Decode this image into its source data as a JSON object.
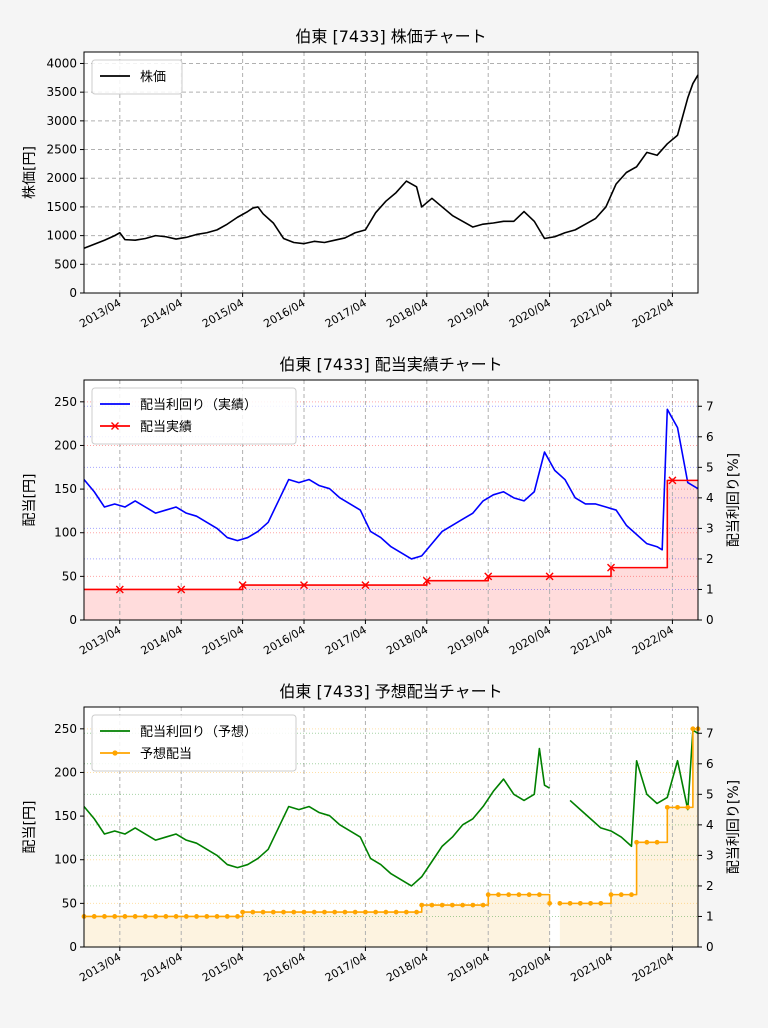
{
  "figure": {
    "background": "#f5f5f5"
  },
  "chart_data": [
    {
      "type": "line",
      "title": "伯東 [7433]  株価チャート",
      "ylabel": "株価[円]",
      "xlabel": "",
      "ylim": [
        0,
        4200
      ],
      "yticks": [
        0,
        500,
        1000,
        1500,
        2000,
        2500,
        3000,
        3500,
        4000
      ],
      "xrange": [
        "2012-09",
        "2022-09"
      ],
      "xticks": [
        "2013/04",
        "2014/04",
        "2015/04",
        "2016/04",
        "2017/04",
        "2018/04",
        "2019/04",
        "2020/04",
        "2021/04",
        "2022/04"
      ],
      "grid": true,
      "legend_position": "top-left",
      "series": [
        {
          "name": "株価",
          "color": "#000000",
          "x": [
            "2012-09",
            "2012-11",
            "2013-01",
            "2013-03",
            "2013-04",
            "2013-05",
            "2013-07",
            "2013-09",
            "2013-11",
            "2014-01",
            "2014-03",
            "2014-05",
            "2014-07",
            "2014-09",
            "2014-11",
            "2015-01",
            "2015-03",
            "2015-05",
            "2015-06",
            "2015-07",
            "2015-08",
            "2015-10",
            "2015-12",
            "2016-02",
            "2016-04",
            "2016-06",
            "2016-08",
            "2016-10",
            "2016-12",
            "2017-02",
            "2017-04",
            "2017-06",
            "2017-08",
            "2017-10",
            "2017-12",
            "2018-02",
            "2018-03",
            "2018-05",
            "2018-07",
            "2018-09",
            "2018-11",
            "2019-01",
            "2019-03",
            "2019-05",
            "2019-07",
            "2019-09",
            "2019-11",
            "2020-01",
            "2020-03",
            "2020-05",
            "2020-07",
            "2020-09",
            "2020-11",
            "2021-01",
            "2021-03",
            "2021-05",
            "2021-07",
            "2021-09",
            "2021-11",
            "2022-01",
            "2022-03",
            "2022-05",
            "2022-07",
            "2022-08",
            "2022-09"
          ],
          "values": [
            780,
            850,
            920,
            1000,
            1050,
            930,
            920,
            950,
            1000,
            980,
            940,
            970,
            1020,
            1050,
            1100,
            1200,
            1320,
            1420,
            1480,
            1500,
            1380,
            1220,
            950,
            880,
            860,
            900,
            880,
            920,
            960,
            1050,
            1100,
            1400,
            1600,
            1750,
            1950,
            1850,
            1500,
            1650,
            1500,
            1350,
            1250,
            1150,
            1200,
            1220,
            1250,
            1250,
            1420,
            1250,
            950,
            980,
            1050,
            1100,
            1200,
            1300,
            1500,
            1900,
            2100,
            2200,
            2450,
            2400,
            2600,
            2750,
            3400,
            3650,
            3800
          ]
        }
      ]
    },
    {
      "type": "line",
      "title": "伯東 [7433]  配当実績チャート",
      "ylabel": "配当[円]",
      "y2label": "配当利回り[%]",
      "xlabel": "",
      "ylim": [
        0,
        275
      ],
      "y2lim": [
        0,
        7.86
      ],
      "yticks": [
        0,
        50,
        100,
        150,
        200,
        250
      ],
      "y2ticks": [
        0,
        1,
        2,
        3,
        4,
        5,
        6,
        7
      ],
      "xrange": [
        "2012-09",
        "2022-09"
      ],
      "xticks": [
        "2013/04",
        "2014/04",
        "2015/04",
        "2016/04",
        "2017/04",
        "2018/04",
        "2019/04",
        "2020/04",
        "2021/04",
        "2022/04"
      ],
      "grid": true,
      "legend_position": "top-left",
      "series": [
        {
          "name": "配当利回り（実績）",
          "axis": "right",
          "color": "#0000ff",
          "x": [
            "2012-09",
            "2012-11",
            "2013-01",
            "2013-03",
            "2013-05",
            "2013-07",
            "2013-09",
            "2013-11",
            "2014-01",
            "2014-03",
            "2014-05",
            "2014-07",
            "2014-09",
            "2014-11",
            "2015-01",
            "2015-03",
            "2015-05",
            "2015-07",
            "2015-09",
            "2015-11",
            "2016-01",
            "2016-03",
            "2016-05",
            "2016-07",
            "2016-09",
            "2016-11",
            "2017-01",
            "2017-03",
            "2017-05",
            "2017-07",
            "2017-09",
            "2017-11",
            "2018-01",
            "2018-03",
            "2018-05",
            "2018-07",
            "2018-09",
            "2018-11",
            "2019-01",
            "2019-03",
            "2019-05",
            "2019-07",
            "2019-09",
            "2019-11",
            "2020-01",
            "2020-03",
            "2020-05",
            "2020-07",
            "2020-09",
            "2020-11",
            "2021-01",
            "2021-03",
            "2021-05",
            "2021-07",
            "2021-09",
            "2021-11",
            "2022-01",
            "2022-02",
            "2022-03",
            "2022-05",
            "2022-07",
            "2022-09"
          ],
          "values": [
            4.6,
            4.2,
            3.7,
            3.8,
            3.7,
            3.9,
            3.7,
            3.5,
            3.6,
            3.7,
            3.5,
            3.4,
            3.2,
            3.0,
            2.7,
            2.6,
            2.7,
            2.9,
            3.2,
            3.9,
            4.6,
            4.5,
            4.6,
            4.4,
            4.3,
            4.0,
            3.8,
            3.6,
            2.9,
            2.7,
            2.4,
            2.2,
            2.0,
            2.1,
            2.5,
            2.9,
            3.1,
            3.3,
            3.5,
            3.9,
            4.1,
            4.2,
            4.0,
            3.9,
            4.2,
            5.5,
            4.9,
            4.6,
            4.0,
            3.8,
            3.8,
            3.7,
            3.6,
            3.1,
            2.8,
            2.5,
            2.4,
            2.3,
            6.9,
            6.3,
            4.5,
            4.3
          ]
        },
        {
          "name": "配当実績",
          "axis": "left",
          "color": "#ff0000",
          "marker": "x",
          "step": true,
          "fill": "#ffdcdc",
          "x": [
            "2012-09",
            "2013-04",
            "2014-04",
            "2015-04",
            "2016-04",
            "2017-04",
            "2018-04",
            "2019-04",
            "2020-04",
            "2021-04",
            "2022-03",
            "2022-09"
          ],
          "values": [
            35,
            35,
            35,
            40,
            40,
            40,
            45,
            50,
            50,
            60,
            160,
            160
          ],
          "markers_x": [
            "2013-04",
            "2014-04",
            "2015-04",
            "2016-04",
            "2017-04",
            "2018-04",
            "2019-04",
            "2020-04",
            "2021-04",
            "2022-04"
          ],
          "markers_y": [
            35,
            35,
            40,
            40,
            40,
            45,
            50,
            50,
            60,
            160
          ]
        }
      ]
    },
    {
      "type": "line",
      "title": "伯東 [7433]  予想配当チャート",
      "ylabel": "配当[円]",
      "y2label": "配当利回り[%]",
      "xlabel": "",
      "ylim": [
        0,
        275
      ],
      "y2lim": [
        0,
        7.86
      ],
      "yticks": [
        0,
        50,
        100,
        150,
        200,
        250
      ],
      "y2ticks": [
        0,
        1,
        2,
        3,
        4,
        5,
        6,
        7
      ],
      "xrange": [
        "2012-09",
        "2022-09"
      ],
      "xticks": [
        "2013/04",
        "2014/04",
        "2015/04",
        "2016/04",
        "2017/04",
        "2018/04",
        "2019/04",
        "2020/04",
        "2021/04",
        "2022/04"
      ],
      "grid": true,
      "legend_position": "top-left",
      "series": [
        {
          "name": "配当利回り（予想）",
          "axis": "right",
          "color": "#008000",
          "x": [
            "2012-09",
            "2012-11",
            "2013-01",
            "2013-03",
            "2013-05",
            "2013-07",
            "2013-09",
            "2013-11",
            "2014-01",
            "2014-03",
            "2014-05",
            "2014-07",
            "2014-09",
            "2014-11",
            "2015-01",
            "2015-03",
            "2015-05",
            "2015-07",
            "2015-09",
            "2015-11",
            "2016-01",
            "2016-03",
            "2016-05",
            "2016-07",
            "2016-09",
            "2016-11",
            "2017-01",
            "2017-03",
            "2017-05",
            "2017-07",
            "2017-09",
            "2017-11",
            "2018-01",
            "2018-03",
            "2018-05",
            "2018-07",
            "2018-09",
            "2018-11",
            "2019-01",
            "2019-03",
            "2019-05",
            "2019-07",
            "2019-09",
            "2019-11",
            "2020-01",
            "2020-02",
            "2020-03",
            "2020-04",
            null,
            "2020-08",
            "2020-10",
            "2020-12",
            "2021-02",
            "2021-04",
            "2021-06",
            "2021-08",
            "2021-09",
            "2021-11",
            "2022-01",
            "2022-03",
            "2022-05",
            "2022-07",
            "2022-08",
            "2022-09"
          ],
          "values": [
            4.6,
            4.2,
            3.7,
            3.8,
            3.7,
            3.9,
            3.7,
            3.5,
            3.6,
            3.7,
            3.5,
            3.4,
            3.2,
            3.0,
            2.7,
            2.6,
            2.7,
            2.9,
            3.2,
            3.9,
            4.6,
            4.5,
            4.6,
            4.4,
            4.3,
            4.0,
            3.8,
            3.6,
            2.9,
            2.7,
            2.4,
            2.2,
            2.0,
            2.3,
            2.8,
            3.3,
            3.6,
            4.0,
            4.2,
            4.6,
            5.1,
            5.5,
            5.0,
            4.8,
            5.0,
            6.5,
            5.3,
            5.2,
            null,
            4.8,
            4.5,
            4.2,
            3.9,
            3.8,
            3.6,
            3.3,
            6.1,
            5.0,
            4.7,
            4.9,
            6.1,
            4.5,
            7.1,
            7.0
          ]
        },
        {
          "name": "予想配当",
          "axis": "left",
          "color": "#ffa500",
          "marker": "o",
          "step": true,
          "fill": "#fdf3e0",
          "x": [
            "2012-09",
            "2015-04",
            "2018-03",
            "2019-04",
            "2020-04",
            null,
            "2020-06",
            "2021-04",
            "2021-09",
            "2022-03",
            "2022-08",
            "2022-09"
          ],
          "values": [
            35,
            40,
            48,
            60,
            50,
            null,
            50,
            60,
            120,
            160,
            250,
            250
          ]
        }
      ]
    }
  ]
}
